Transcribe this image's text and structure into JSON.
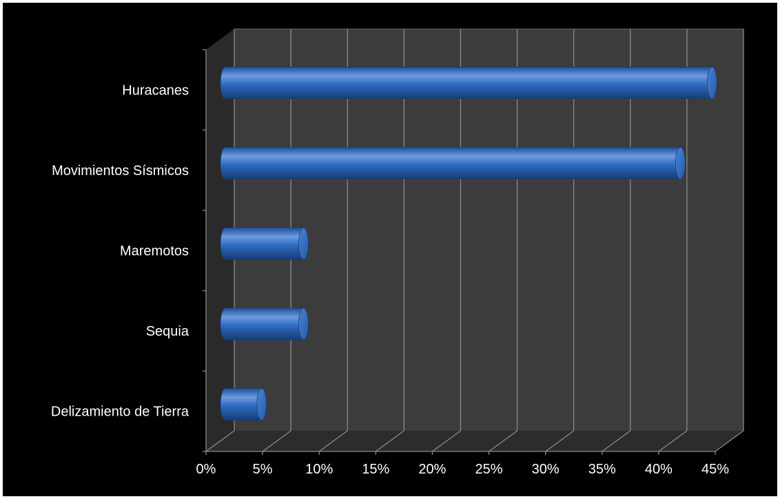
{
  "chart_data": {
    "type": "bar",
    "orientation": "horizontal",
    "style": "3d-cylinder",
    "categories": [
      "Huracanes",
      "Movimientos Sísmicos",
      "Maremotos",
      "Sequia",
      "Delizamiento de Tierra"
    ],
    "values": [
      43.5,
      40.7,
      7.4,
      7.4,
      3.7
    ],
    "value_unit": "%",
    "xlim": [
      0,
      45
    ],
    "x_ticks": [
      "0%",
      "5%",
      "10%",
      "15%",
      "20%",
      "25%",
      "30%",
      "35%",
      "40%",
      "45%"
    ],
    "grid": true,
    "legend": "none",
    "colors": {
      "bar": "#2f6bbf",
      "bar_highlight": "#7aa6e6",
      "bar_shadow": "#173f7a",
      "background": "#000000",
      "back_wall": "#3a3a3a",
      "floor": "#2b2b2b",
      "gridline": "#7a7a7a",
      "text": "#ffffff"
    }
  }
}
